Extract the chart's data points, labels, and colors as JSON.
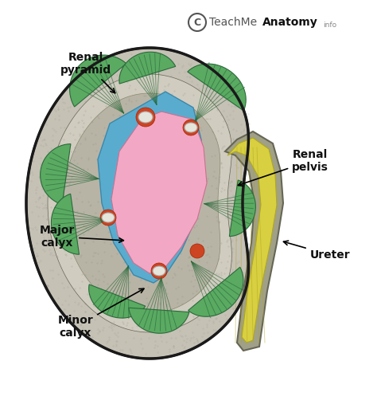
{
  "bg_color": "#ffffff",
  "labels": {
    "renal_pyramid": "Renal\npyramid",
    "renal_pelvis": "Renal\npelvis",
    "major_calyx": "Major\ncalyx",
    "minor_calyx": "Minor\ncalyx",
    "ureter": "Ureter"
  },
  "colors": {
    "kidney_outer_dark": "#3a3a3a",
    "kidney_cortex": "#c0bcb0",
    "kidney_cortex_inner": "#b8b4a5",
    "renal_pyramid_green": "#5aaa62",
    "renal_pyramid_edge": "#2a6a3a",
    "renal_pelvis_pink": "#f2a8c5",
    "renal_pelvis_blue": "#5aaccf",
    "ureter_yellow": "#d8d040",
    "ureter_outer": "#aaa888",
    "ureter_dark": "#666655",
    "red_tissue": "#cc4422",
    "white_spot": "#e0e0d8",
    "annotation_color": "#111111"
  },
  "watermark": {
    "copyright": "C",
    "text_normal": "TeachMe",
    "text_bold": "Anatomy",
    "text_small": "info",
    "color_normal": "#555555",
    "color_bold": "#111111",
    "fontsize": 11
  },
  "figsize": [
    4.74,
    5.12
  ],
  "dpi": 100
}
